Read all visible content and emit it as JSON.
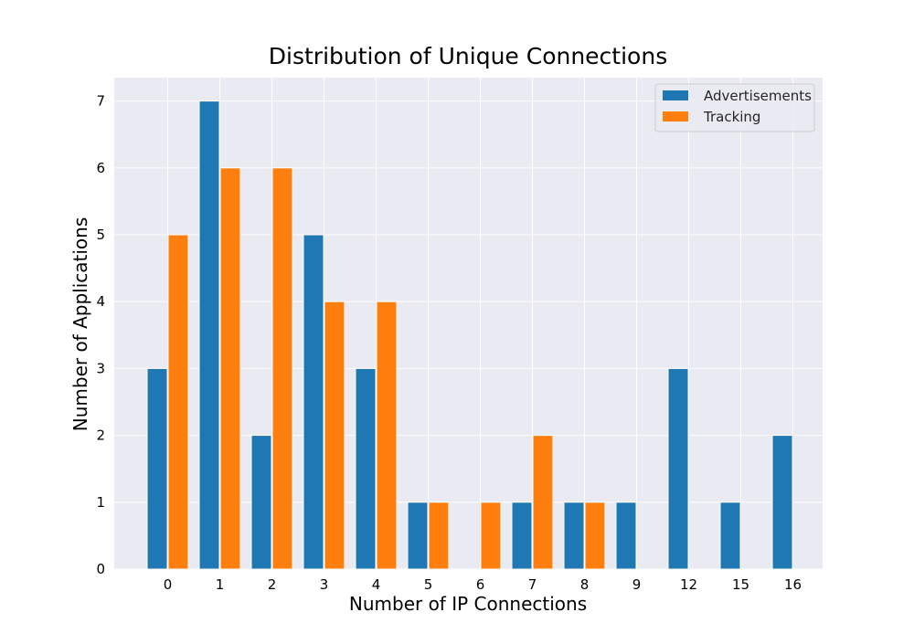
{
  "chart_data": {
    "type": "bar",
    "title": "Distribution of Unique Connections",
    "xlabel": "Number of IP Connections",
    "ylabel": "Number of Applications",
    "categories": [
      "0",
      "1",
      "2",
      "3",
      "4",
      "5",
      "6",
      "7",
      "8",
      "9",
      "12",
      "15",
      "16"
    ],
    "series": [
      {
        "name": "Advertisements",
        "color": "#1f77b4",
        "values": [
          3,
          7,
          2,
          5,
          3,
          1,
          0,
          1,
          1,
          1,
          3,
          1,
          2
        ]
      },
      {
        "name": "Tracking",
        "color": "#ff7f0e",
        "values": [
          5,
          6,
          6,
          4,
          4,
          1,
          1,
          2,
          1,
          0,
          0,
          0,
          0
        ]
      }
    ],
    "ylim": [
      0,
      7.35
    ],
    "yticks": [
      0,
      1,
      2,
      3,
      4,
      5,
      6,
      7
    ],
    "grid": true,
    "legend_position": "top-right",
    "background": "#eaeaf2",
    "grid_color": "#ffffff"
  }
}
